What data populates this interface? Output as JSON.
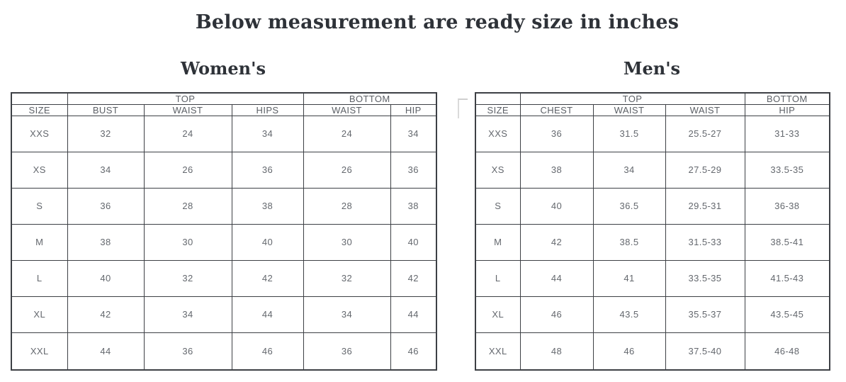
{
  "page": {
    "title": "Below measurement are ready size in inches"
  },
  "colors": {
    "background": "#ffffff",
    "title_text": "#2e3238",
    "table_border": "#3d4045",
    "header_text": "#5c6066",
    "cell_text": "#64686e"
  },
  "women": {
    "heading": "Women's",
    "group_headers": [
      {
        "label": "",
        "span": 1
      },
      {
        "label": "TOP",
        "span": 3
      },
      {
        "label": "BOTTOM",
        "span": 2
      }
    ],
    "columns": [
      "SIZE",
      "BUST",
      "WAIST",
      "HIPS",
      "WAIST",
      "HIP"
    ],
    "rows": [
      [
        "XXS",
        "32",
        "24",
        "34",
        "24",
        "34"
      ],
      [
        "XS",
        "34",
        "26",
        "36",
        "26",
        "36"
      ],
      [
        "S",
        "36",
        "28",
        "38",
        "28",
        "38"
      ],
      [
        "M",
        "38",
        "30",
        "40",
        "30",
        "40"
      ],
      [
        "L",
        "40",
        "32",
        "42",
        "32",
        "42"
      ],
      [
        "XL",
        "42",
        "34",
        "44",
        "34",
        "44"
      ],
      [
        "XXL",
        "44",
        "36",
        "46",
        "36",
        "46"
      ]
    ]
  },
  "men": {
    "heading": "Men's",
    "group_headers": [
      {
        "label": "",
        "span": 1
      },
      {
        "label": "TOP",
        "span": 3
      },
      {
        "label": "BOTTOM",
        "span": 1
      }
    ],
    "columns": [
      "SIZE",
      "CHEST",
      "WAIST",
      "WAIST",
      "HIP"
    ],
    "rows": [
      [
        "XXS",
        "36",
        "31.5",
        "25.5-27",
        "31-33"
      ],
      [
        "XS",
        "38",
        "34",
        "27.5-29",
        "33.5-35"
      ],
      [
        "S",
        "40",
        "36.5",
        "29.5-31",
        "36-38"
      ],
      [
        "M",
        "42",
        "38.5",
        "31.5-33",
        "38.5-41"
      ],
      [
        "L",
        "44",
        "41",
        "33.5-35",
        "41.5-43"
      ],
      [
        "XL",
        "46",
        "43.5",
        "35.5-37",
        "43.5-45"
      ],
      [
        "XXL",
        "48",
        "46",
        "37.5-40",
        "46-48"
      ]
    ]
  }
}
